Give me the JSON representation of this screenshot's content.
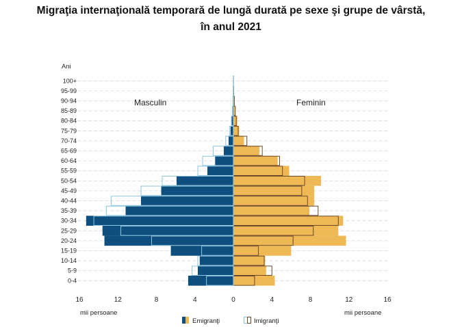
{
  "title_line1": "Migraţia internaţională temporară de lungă durată pe sexe şi grupe de vârstă,",
  "title_line2": "în anul 2021",
  "chart_data": {
    "type": "bar",
    "orientation": "horizontal-population-pyramid",
    "y_axis_label": "Ani",
    "x_axis_label_left": "mii persoane",
    "x_axis_label_right": "mii persoane",
    "side_label_left": "Masculin",
    "side_label_right": "Feminin",
    "xlim": [
      -16,
      16
    ],
    "x_ticks": [
      -16,
      -12,
      -8,
      -4,
      0,
      4,
      8,
      12,
      16
    ],
    "x_tick_labels": [
      "16",
      "12",
      "8",
      "4",
      "0",
      "4",
      "8",
      "12",
      "16"
    ],
    "categories": [
      "0-4",
      "5-9",
      "10-14",
      "15-19",
      "20-24",
      "25-29",
      "30-34",
      "35-39",
      "40-44",
      "45-49",
      "50-54",
      "55-59",
      "60-64",
      "65-69",
      "70-74",
      "75-79",
      "80-84",
      "85-89",
      "90-94",
      "95-99",
      "100+"
    ],
    "legend": [
      {
        "name": "Emigranţi",
        "style": "filled"
      },
      {
        "name": "Imigranţi",
        "style": "outline"
      }
    ],
    "series": [
      {
        "name": "Emigranţi",
        "sex": "Masculin",
        "values": [
          4.7,
          3.7,
          3.5,
          6.5,
          13.4,
          13.6,
          15.3,
          11.2,
          9.6,
          7.5,
          5.9,
          2.7,
          1.9,
          1.0,
          0.5,
          0.3,
          0.2,
          0.1,
          0.05,
          0.02,
          0.01
        ]
      },
      {
        "name": "Imigranţi",
        "sex": "Masculin",
        "values": [
          2.8,
          4.3,
          3.7,
          3.3,
          8.5,
          11.7,
          14.5,
          13.2,
          12.7,
          9.6,
          7.4,
          3.7,
          3.2,
          2.1,
          0.8,
          0.4,
          0.2,
          0.1,
          0.05,
          0.02,
          0.01
        ]
      },
      {
        "name": "Emigranţi",
        "sex": "Feminin",
        "values": [
          4.3,
          3.4,
          3.3,
          6.0,
          11.7,
          10.9,
          11.4,
          7.9,
          8.4,
          8.4,
          9.1,
          5.8,
          4.6,
          2.7,
          1.1,
          0.6,
          0.4,
          0.2,
          0.1,
          0.03,
          0.01
        ]
      },
      {
        "name": "Imigranţi",
        "sex": "Feminin",
        "values": [
          2.2,
          4.0,
          3.2,
          2.6,
          6.2,
          8.3,
          10.9,
          8.8,
          7.7,
          7.1,
          7.4,
          5.1,
          4.8,
          3.0,
          1.4,
          0.5,
          0.3,
          0.2,
          0.1,
          0.03,
          0.01
        ]
      }
    ],
    "colors": {
      "emigranti_masculin": "#0e4f7f",
      "emigranti_feminin": "#eeb955",
      "imigranti_masculin_outline": "#8fc6dd",
      "imigranti_feminin_outline": "#6b4a2a",
      "grid": "#d6d6d6"
    },
    "grid": true
  }
}
